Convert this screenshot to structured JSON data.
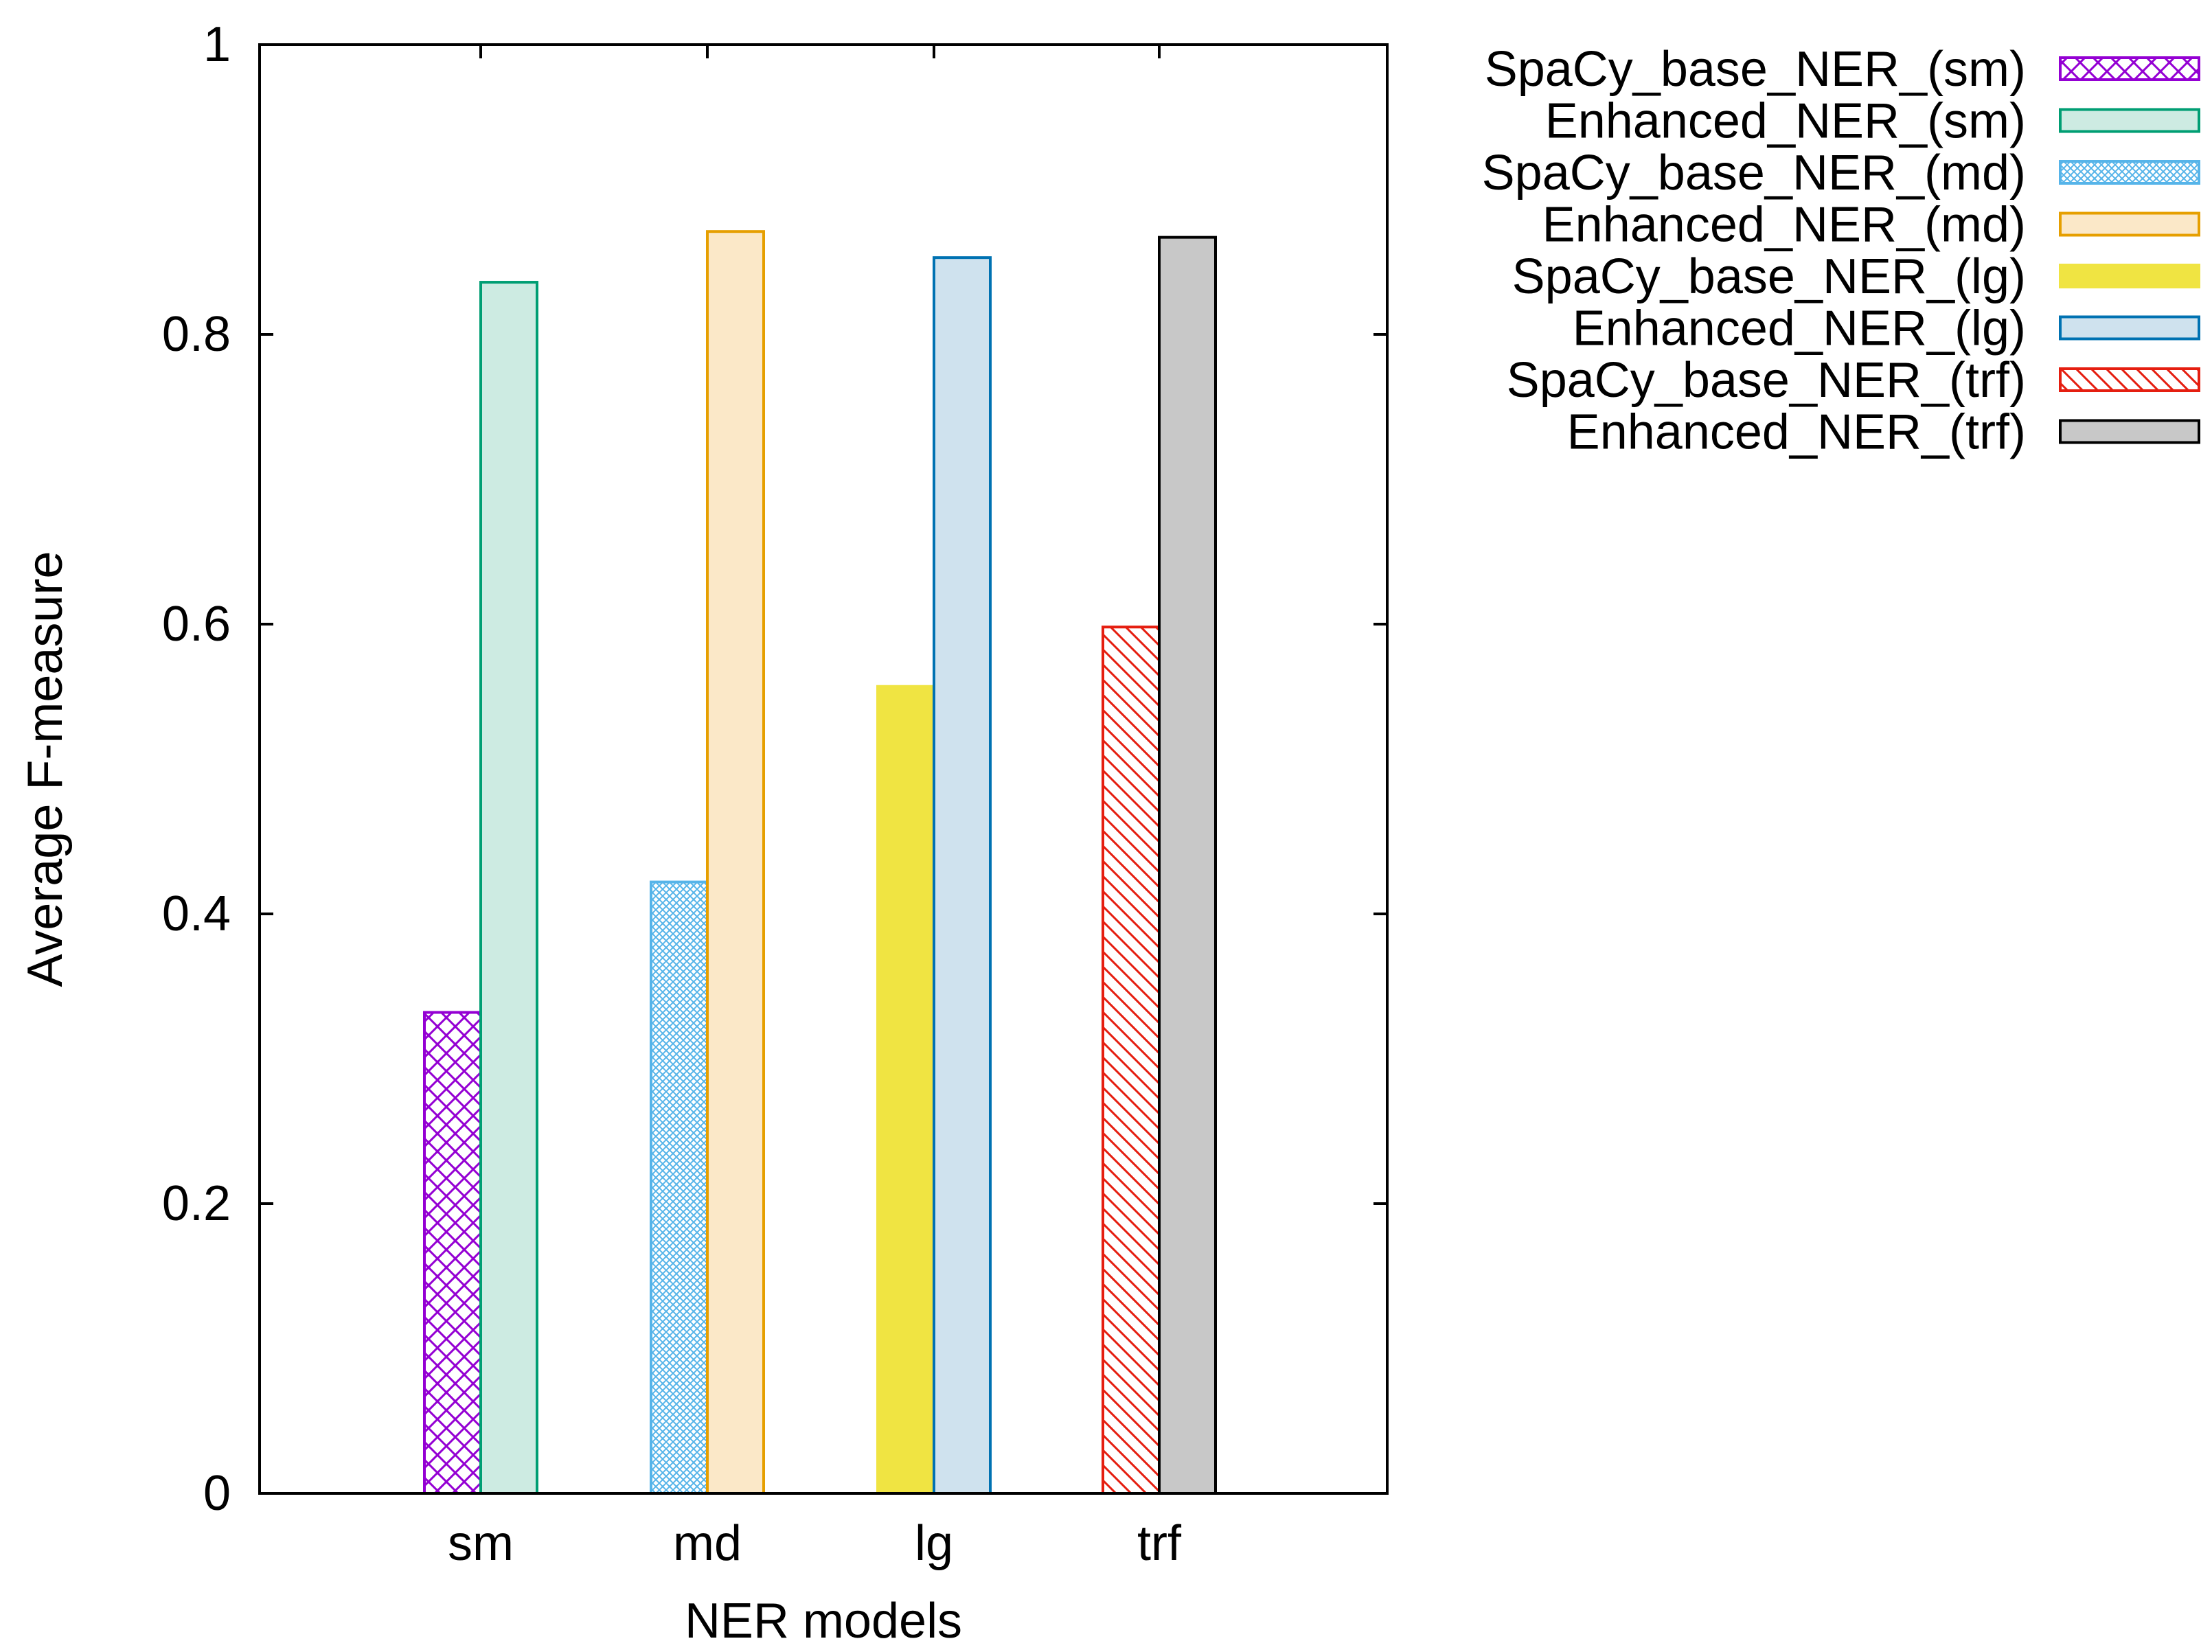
{
  "chart_data": {
    "type": "bar",
    "title": "",
    "xlabel": "NER models",
    "ylabel": "Average F-measure",
    "categories": [
      "sm",
      "md",
      "lg",
      "trf"
    ],
    "ylim": [
      0,
      1
    ],
    "yticks": [
      "0",
      "0.2",
      "0.4",
      "0.6",
      "0.8",
      "1"
    ],
    "grid": false,
    "legend_position": "outside-right-top",
    "series": [
      {
        "name": "SpaCy_base_NER_(sm)",
        "stroke": "#9400d3",
        "fill": "#9400d3",
        "pattern": "crosshatch",
        "values": [
          0.332,
          null,
          null,
          null
        ]
      },
      {
        "name": "Enhanced_NER_(sm)",
        "stroke": "#009e73",
        "fill": "#cdebe2",
        "pattern": "solid",
        "values": [
          0.836,
          null,
          null,
          null
        ]
      },
      {
        "name": "SpaCy_base_NER_(md)",
        "stroke": "#56b4e9",
        "fill": "#56b4e9",
        "pattern": "dots",
        "values": [
          null,
          0.422,
          null,
          null
        ]
      },
      {
        "name": "Enhanced_NER_(md)",
        "stroke": "#e69f00",
        "fill": "#fbe8c8",
        "pattern": "solid",
        "values": [
          null,
          0.871,
          null,
          null
        ]
      },
      {
        "name": "SpaCy_base_NER_(lg)",
        "stroke": "#f0e442",
        "fill": "#f0e442",
        "pattern": "solid",
        "values": [
          null,
          null,
          0.557,
          null
        ]
      },
      {
        "name": "Enhanced_NER_(lg)",
        "stroke": "#0072b2",
        "fill": "#cfe2ee",
        "pattern": "solid",
        "values": [
          null,
          null,
          0.853,
          null
        ]
      },
      {
        "name": "SpaCy_base_NER_(trf)",
        "stroke": "#e51e10",
        "fill": "#e51e10",
        "pattern": "diagonal",
        "values": [
          null,
          null,
          null,
          0.598
        ]
      },
      {
        "name": "Enhanced_NER_(trf)",
        "stroke": "#000000",
        "fill": "#c8c8c8",
        "pattern": "solid",
        "values": [
          null,
          null,
          null,
          0.867
        ]
      }
    ]
  }
}
